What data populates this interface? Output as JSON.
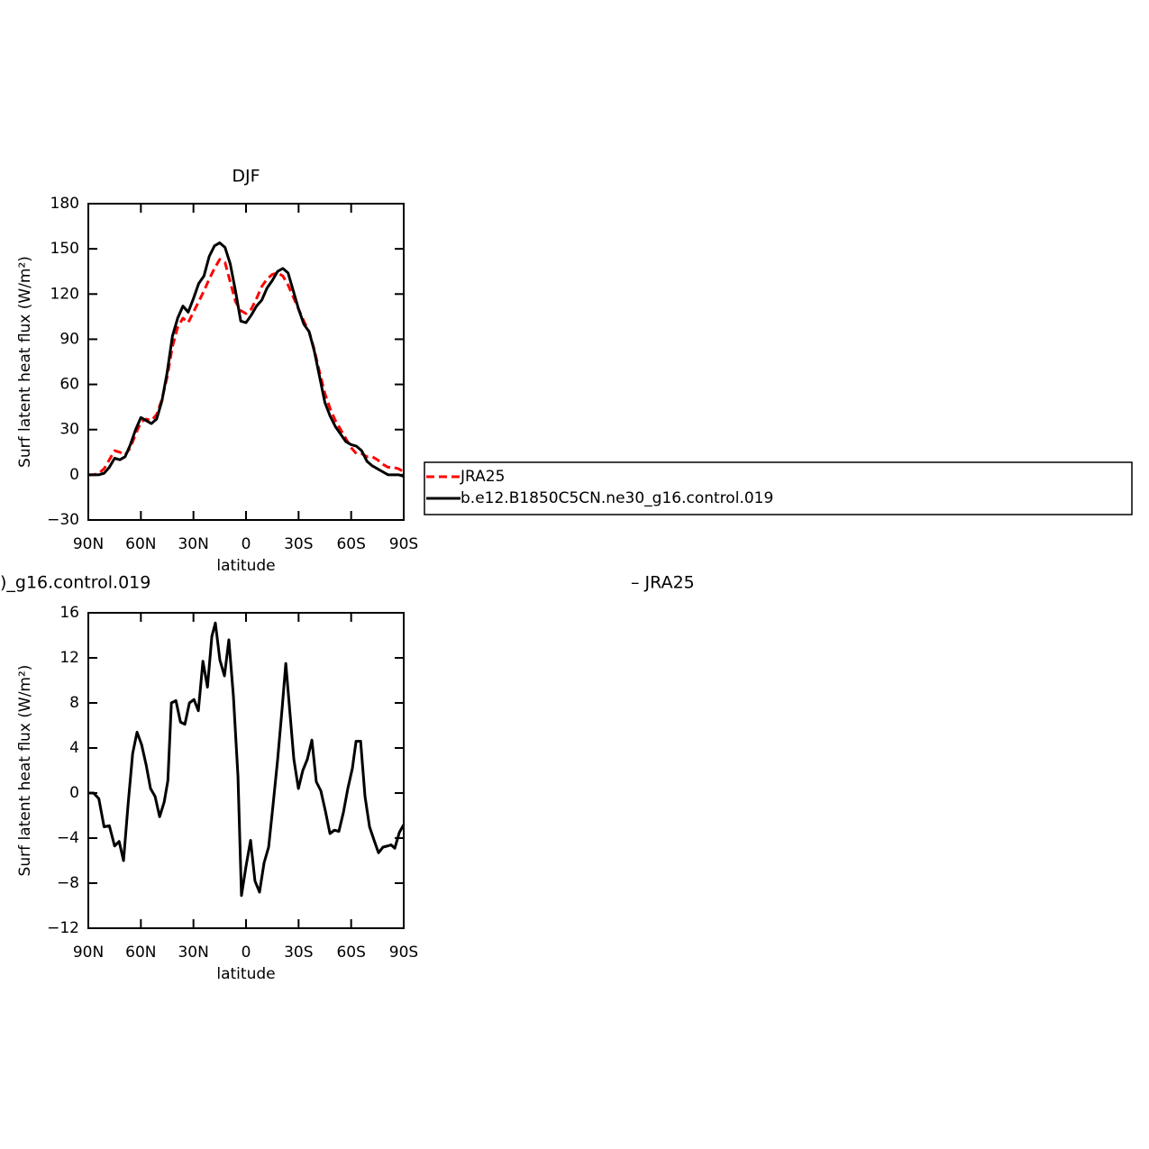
{
  "chart_data": [
    {
      "type": "line",
      "title": "DJF",
      "xlabel": "latitude",
      "ylabel": "Surf latent heat flux (W/m²)",
      "x": [
        90,
        87,
        84,
        81,
        78,
        75,
        72,
        69,
        66,
        63,
        60,
        57,
        54,
        51,
        48,
        45,
        42,
        39,
        36,
        33,
        30,
        27,
        24,
        21,
        18,
        15,
        12,
        9,
        6,
        3,
        0,
        -3,
        -6,
        -9,
        -12,
        -15,
        -18,
        -21,
        -24,
        -27,
        -30,
        -33,
        -36,
        -39,
        -42,
        -45,
        -48,
        -51,
        -54,
        -57,
        -60,
        -63,
        -66,
        -69,
        -72,
        -75,
        -78,
        -81,
        -84,
        -87,
        -90
      ],
      "series": [
        {
          "name": "JRA25",
          "color": "#ff0000",
          "line_style": "dashed",
          "values": [
            0,
            0,
            1,
            4,
            10,
            16,
            15,
            13,
            18,
            27,
            35,
            37,
            36,
            40,
            50,
            65,
            85,
            98,
            104,
            101,
            108,
            115,
            122,
            130,
            137,
            143,
            141,
            128,
            115,
            109,
            107,
            110,
            117,
            125,
            130,
            133,
            134,
            132,
            126,
            118,
            110,
            102,
            95,
            83,
            68,
            54,
            44,
            36,
            30,
            24,
            18,
            14,
            14,
            12,
            12,
            10,
            7,
            5,
            5,
            4,
            2
          ]
        },
        {
          "name": "b.e12.B1850C5CN.ne30_g16.control.019",
          "color": "#000000",
          "line_style": "solid",
          "values": [
            0,
            0,
            0,
            1,
            5,
            11,
            10,
            12,
            20,
            30,
            38,
            36,
            34,
            37,
            49,
            68,
            92,
            104,
            112,
            108,
            117,
            127,
            132,
            145,
            152,
            154,
            151,
            140,
            122,
            102,
            101,
            106,
            112,
            116,
            124,
            129,
            135,
            137,
            134,
            122,
            110,
            100,
            95,
            82,
            65,
            48,
            39,
            32,
            27,
            22,
            20,
            19,
            16,
            9,
            6,
            4,
            2,
            0,
            0,
            0,
            -1
          ]
        }
      ],
      "xlim": [
        90,
        -90
      ],
      "xticks": [
        {
          "value": 90,
          "label": "90N"
        },
        {
          "value": 60,
          "label": "60N"
        },
        {
          "value": 30,
          "label": "30N"
        },
        0,
        {
          "value": -30,
          "label": "30S"
        },
        {
          "value": -60,
          "label": "60S"
        },
        {
          "value": -90,
          "label": "90S"
        }
      ],
      "ylim": [
        -30,
        180
      ],
      "yticks": [
        {
          "value": -30,
          "label": "−30"
        },
        0,
        30,
        60,
        90,
        120,
        150,
        180
      ]
    },
    {
      "type": "line",
      "title_left": ")_g16.control.019",
      "title_right": "– JRA25",
      "xlabel": "latitude",
      "ylabel": "Surf latent heat flux (W/m²)",
      "x": [
        90,
        87,
        84,
        81,
        78,
        75,
        72.4,
        69.9,
        67.3,
        64.7,
        62.2,
        59.6,
        57,
        54.5,
        51.9,
        49.3,
        46.7,
        44.6,
        42.6,
        40,
        37.4,
        34.9,
        32.3,
        29.7,
        27.2,
        24.6,
        22,
        19.5,
        17.5,
        14.9,
        12.3,
        9.8,
        7.2,
        4.6,
        2.6,
        0,
        -2.6,
        -5.1,
        -7.7,
        -10.3,
        -12.9,
        -15.4,
        -18,
        -20.6,
        -22.7,
        -24.7,
        -27.3,
        -29.9,
        -32.4,
        -35,
        -37.6,
        -40.1,
        -42.7,
        -45.3,
        -47.9,
        -50.4,
        -53,
        -55.6,
        -58.1,
        -60.7,
        -62.8,
        -65.4,
        -67.9,
        -70.5,
        -73.1,
        -75.6,
        -78.2,
        -80.8,
        -82.8,
        -84.9,
        -87.5,
        -90
      ],
      "series": [
        {
          "color": "#000000",
          "line_style": "solid",
          "values": [
            0,
            0,
            -0.5,
            -3,
            -2.9,
            -4.7,
            -4.3,
            -6,
            -1,
            3.5,
            5.4,
            4.3,
            2.5,
            0.4,
            -0.3,
            -2.1,
            -0.8,
            1.1,
            8,
            8.2,
            6.3,
            6.1,
            8,
            8.3,
            7.3,
            11.7,
            9.4,
            13.9,
            15.1,
            11.8,
            10.4,
            13.6,
            8.6,
            1.5,
            -9.1,
            -6.5,
            -4.2,
            -7.8,
            -8.8,
            -6.2,
            -4.8,
            -1.1,
            2.9,
            7.5,
            11.5,
            7.8,
            3,
            0.4,
            2,
            3,
            4.7,
            1,
            0.2,
            -1.6,
            -3.6,
            -3.3,
            -3.4,
            -1.7,
            0.4,
            2.2,
            4.6,
            4.6,
            -0.3,
            -3,
            -4.2,
            -5.3,
            -4.8,
            -4.7,
            -4.6,
            -4.9,
            -3.5,
            -2.8
          ]
        }
      ],
      "xlim": [
        90,
        -90
      ],
      "xticks": [
        {
          "value": 90,
          "label": "90N"
        },
        {
          "value": 60,
          "label": "60N"
        },
        {
          "value": 30,
          "label": "30N"
        },
        0,
        {
          "value": -30,
          "label": "30S"
        },
        {
          "value": -60,
          "label": "60S"
        },
        {
          "value": -90,
          "label": "90S"
        }
      ],
      "ylim": [
        -12,
        16
      ],
      "yticks": [
        {
          "value": -12,
          "label": "−12"
        },
        {
          "value": -8,
          "label": "−8"
        },
        {
          "value": -4,
          "label": "−4"
        },
        0,
        4,
        8,
        12,
        16
      ]
    }
  ]
}
